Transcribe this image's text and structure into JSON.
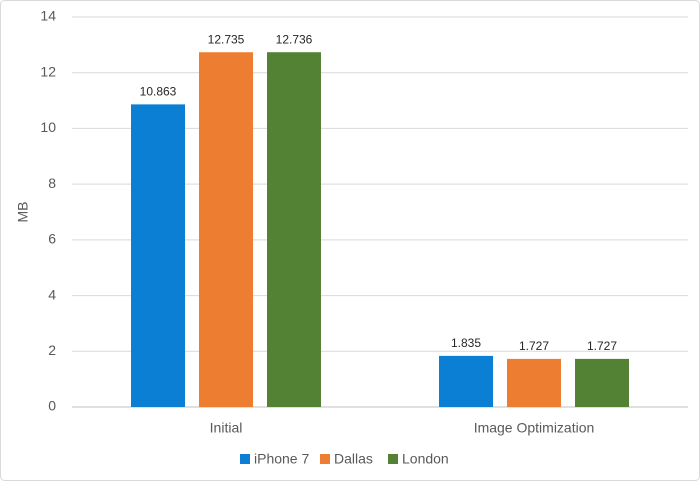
{
  "chart_data": {
    "type": "bar",
    "y_label": "MB",
    "categories": [
      "Initial",
      "Image Optimization"
    ],
    "series": [
      {
        "name": "iPhone 7",
        "color": "#0a7fd3",
        "values": [
          10.863,
          1.835
        ]
      },
      {
        "name": "Dallas",
        "color": "#ed7d31",
        "values": [
          12.735,
          1.727
        ]
      },
      {
        "name": "London",
        "color": "#548235",
        "values": [
          12.736,
          1.727
        ]
      }
    ],
    "ylim": [
      0,
      14
    ],
    "yticks": [
      0,
      2,
      4,
      6,
      8,
      10,
      12,
      14
    ],
    "grid": true,
    "legend": "bottom"
  }
}
